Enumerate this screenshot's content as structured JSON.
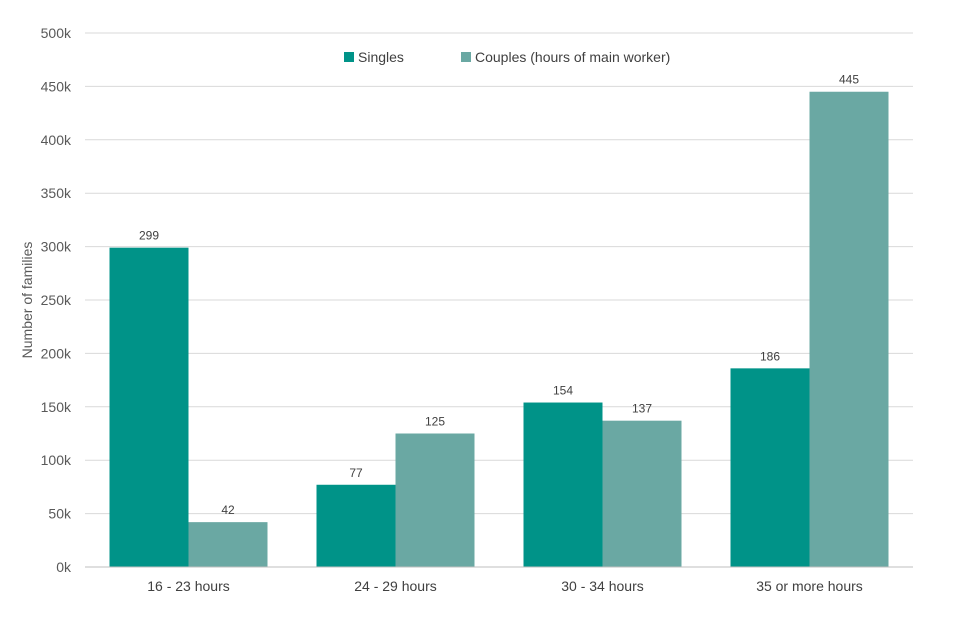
{
  "chart_data": {
    "type": "bar",
    "categories": [
      "16 - 23 hours",
      "24 - 29 hours",
      "30 - 34 hours",
      "35 or more hours"
    ],
    "series": [
      {
        "name": "Singles",
        "values": [
          299,
          77,
          154,
          186
        ],
        "color": "#009388"
      },
      {
        "name": "Couples (hours of main worker)",
        "values": [
          42,
          125,
          137,
          445
        ],
        "color": "#6aa8a3"
      }
    ],
    "data_labels": {
      "Singles": [
        "299",
        "77",
        "154",
        "186"
      ],
      "Couples (hours of main worker)": [
        "42",
        "125",
        "137",
        "445"
      ]
    },
    "ylabel": "Number of families",
    "xlabel": "",
    "ylim": [
      0,
      500
    ],
    "yticks": [
      0,
      50,
      100,
      150,
      200,
      250,
      300,
      350,
      400,
      450,
      500
    ],
    "ytick_labels": [
      "0k",
      "50k",
      "100k",
      "150k",
      "200k",
      "250k",
      "300k",
      "350k",
      "400k",
      "450k",
      "500k"
    ],
    "grid": true,
    "legend_position": "top-center"
  }
}
